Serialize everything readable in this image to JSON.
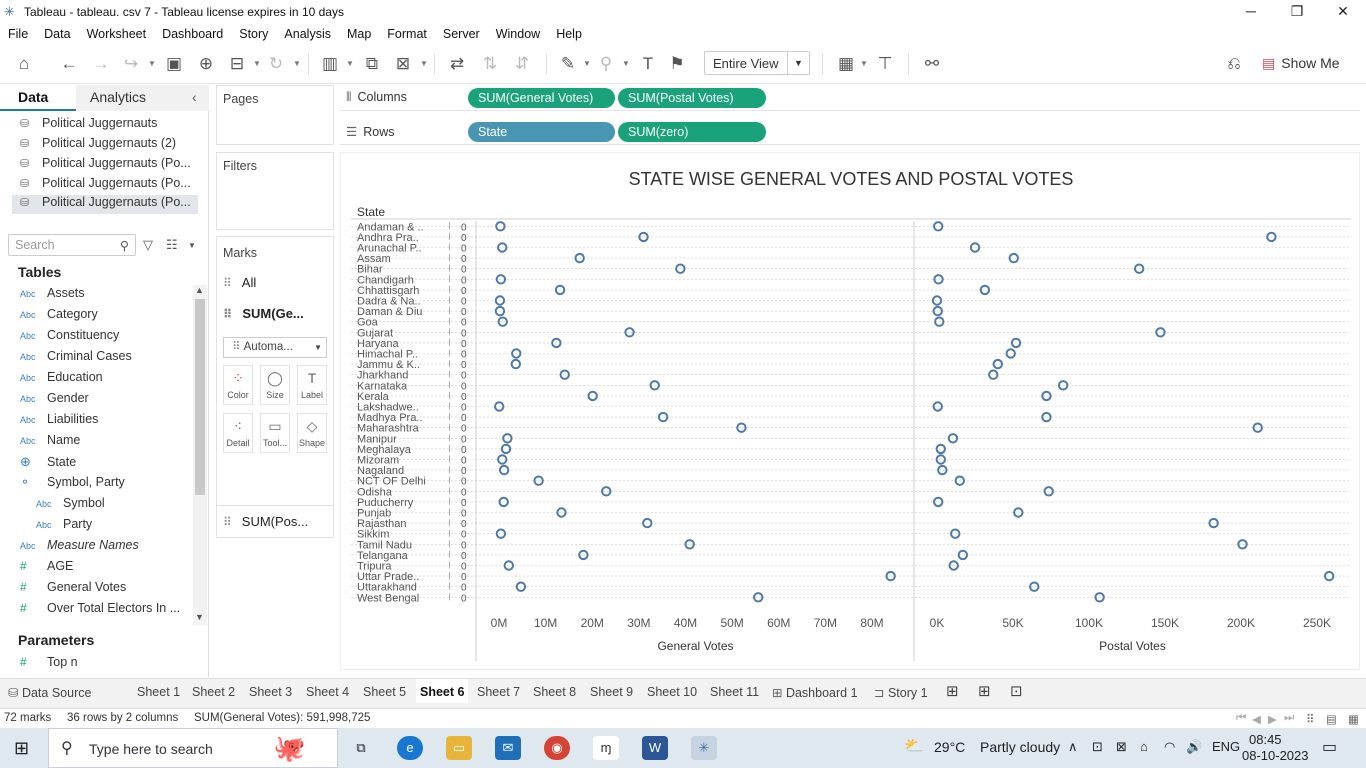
{
  "window": {
    "title": "Tableau - tableau. csv 7 - Tableau license expires in 10 days",
    "minimize": "─",
    "restore": "❐",
    "close": "✕"
  },
  "menu": [
    "File",
    "Data",
    "Worksheet",
    "Dashboard",
    "Story",
    "Analysis",
    "Map",
    "Format",
    "Server",
    "Window",
    "Help"
  ],
  "toolbar": {
    "fit": "Entire View",
    "show_me": "Show Me"
  },
  "left_pane": {
    "tabs": {
      "data": "Data",
      "analytics": "Analytics"
    },
    "data_sources": [
      "Political Juggernauts",
      "Political Juggernauts (2)",
      "Political Juggernauts (Po...",
      "Political Juggernauts (Po...",
      "Political Juggernauts (Po..."
    ],
    "search_placeholder": "Search",
    "tables_title": "Tables",
    "fields": [
      {
        "type": "Abc",
        "name": "Assets"
      },
      {
        "type": "Abc",
        "name": "Category"
      },
      {
        "type": "Abc",
        "name": "Constituency"
      },
      {
        "type": "Abc",
        "name": "Criminal Cases"
      },
      {
        "type": "Abc",
        "name": "Education"
      },
      {
        "type": "Abc",
        "name": "Gender"
      },
      {
        "type": "Abc",
        "name": "Liabilities"
      },
      {
        "type": "Abc",
        "name": "Name"
      },
      {
        "type": "geo",
        "name": "State"
      },
      {
        "type": "hier",
        "name": "Symbol, Party"
      },
      {
        "type": "Abc",
        "name": "Symbol"
      },
      {
        "type": "Abc",
        "name": "Party"
      },
      {
        "type": "Abc",
        "name": "Measure Names"
      },
      {
        "type": "#",
        "name": "AGE"
      },
      {
        "type": "#",
        "name": "General Votes"
      },
      {
        "type": "#",
        "name": "Over Total Electors  In ..."
      }
    ],
    "parameters_title": "Parameters",
    "parameters": [
      {
        "type": "#",
        "name": "Top n"
      }
    ]
  },
  "cards": {
    "pages": "Pages",
    "filters": "Filters",
    "marks": "Marks",
    "marks_all": "All",
    "marks_gen": "SUM(Ge...",
    "mark_type": "Automa...",
    "buttons": [
      "Color",
      "Size",
      "Label",
      "Detail",
      "Tool...",
      "Shape"
    ],
    "marks_pos": "SUM(Pos..."
  },
  "shelves": {
    "columns_label": "Columns",
    "rows_label": "Rows",
    "columns": [
      "SUM(General Votes)",
      "SUM(Postal Votes)"
    ],
    "rows": [
      "State",
      "SUM(zero)"
    ]
  },
  "chart_data": {
    "type": "scatter",
    "title": "STATE WISE GENERAL VOTES AND POSTAL VOTES",
    "row_header": "State",
    "zero_axis_label": "0",
    "categories": [
      "Andaman & ..",
      "Andhra Pra..",
      "Arunachal P..",
      "Assam",
      "Bihar",
      "Chandigarh",
      "Chhattisgarh",
      "Dadra & Na..",
      "Daman & Diu",
      "Goa",
      "Gujarat",
      "Haryana",
      "Himachal P..",
      "Jammu & K..",
      "Jharkhand",
      "Karnataka",
      "Kerala",
      "Lakshadwe..",
      "Madhya Pra..",
      "Maharashtra",
      "Manipur",
      "Meghalaya",
      "Mizoram",
      "Nagaland",
      "NCT OF Delhi",
      "Odisha",
      "Puducherry",
      "Punjab",
      "Rajasthan",
      "Sikkim",
      "Tamil Nadu",
      "Telangana",
      "Tripura",
      "Uttar Prade..",
      "Uttarakhand",
      "West Bengal"
    ],
    "series": [
      {
        "name": "General Votes",
        "xlabel": "General Votes",
        "xlim": [
          0,
          85000000
        ],
        "ticks": [
          0,
          10000000,
          20000000,
          30000000,
          40000000,
          50000000,
          60000000,
          70000000,
          80000000
        ],
        "tick_labels": [
          "0M",
          "10M",
          "20M",
          "30M",
          "40M",
          "50M",
          "60M",
          "70M",
          "80M"
        ],
        "values": [
          300000,
          31000000,
          700000,
          17300000,
          38900000,
          400000,
          13100000,
          200000,
          200000,
          800000,
          28000000,
          12300000,
          3700000,
          3600000,
          14100000,
          33400000,
          20100000,
          50000,
          35200000,
          52000000,
          1800000,
          1500000,
          700000,
          1100000,
          8500000,
          23000000,
          1000000,
          13400000,
          31800000,
          400000,
          40900000,
          18100000,
          2100000,
          84000000,
          4700000,
          55600000
        ]
      },
      {
        "name": "Postal Votes",
        "xlabel": "Postal Votes",
        "xlim": [
          0,
          270000
        ],
        "ticks": [
          0,
          50000,
          100000,
          150000,
          200000,
          250000
        ],
        "tick_labels": [
          "0K",
          "50K",
          "100K",
          "150K",
          "200K",
          "250K"
        ],
        "values": [
          800,
          220000,
          25000,
          50500,
          133000,
          1000,
          31500,
          0,
          500,
          1500,
          147000,
          52000,
          48500,
          40000,
          37000,
          83000,
          72000,
          500,
          72000,
          211000,
          10500,
          2500,
          2500,
          3500,
          15000,
          73500,
          800,
          53500,
          182000,
          12000,
          201000,
          17000,
          11000,
          258000,
          64000,
          107000
        ]
      }
    ],
    "marker": "circle",
    "color": "#4e79a7"
  },
  "sheet_tabs": {
    "data_source": "Data Source",
    "sheets": [
      "Sheet 1",
      "Sheet 2",
      "Sheet 3",
      "Sheet 4",
      "Sheet 5",
      "Sheet 6",
      "Sheet 7",
      "Sheet 8",
      "Sheet 9",
      "Sheet 10",
      "Sheet 11"
    ],
    "active": "Sheet 6",
    "dashboard": "Dashboard 1",
    "story": "Story 1"
  },
  "status": {
    "marks": "72 marks",
    "rows_cols": "36 rows by 2 columns",
    "sum": "SUM(General Votes): 591,998,725"
  },
  "taskbar": {
    "search": "Type here to search",
    "weather_temp": "29°C",
    "weather_desc": "Partly cloudy",
    "lang": "ENG",
    "time": "08:45",
    "date": "08-10-2023"
  }
}
